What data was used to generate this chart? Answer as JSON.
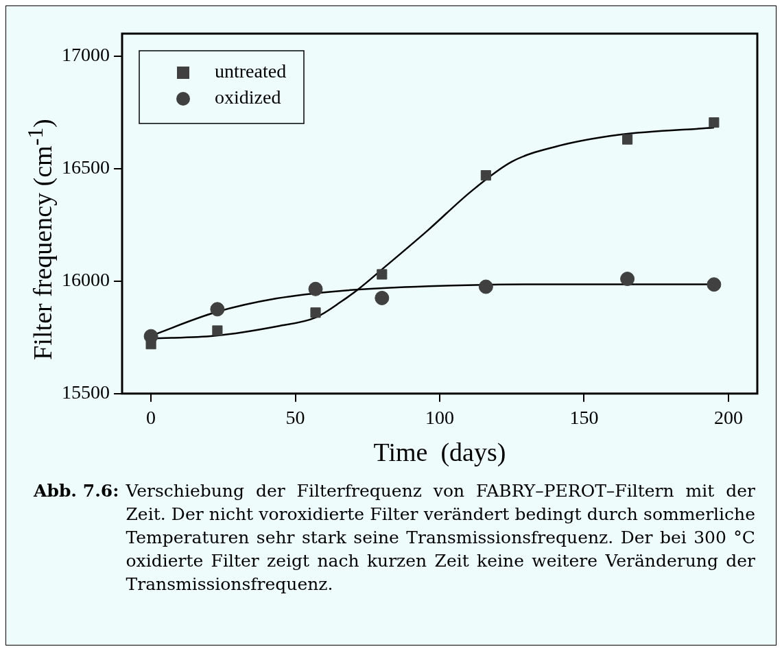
{
  "chart_data": {
    "type": "scatter",
    "xlabel": "Time  (days)",
    "ylabel": "Filter frequency (cm$^{-1}$)",
    "xlim": [
      -10,
      210
    ],
    "ylim": [
      15500,
      17100
    ],
    "xticks": [
      0,
      50,
      100,
      150,
      200
    ],
    "yticks": [
      15500,
      16000,
      16500,
      17000
    ],
    "legend": "top left",
    "series": [
      {
        "name": "untreated",
        "type": "scatter",
        "marker": "square",
        "color": "#404040",
        "x": [
          0,
          23,
          57,
          80,
          116,
          165,
          195
        ],
        "values": [
          15720,
          15780,
          15860,
          16030,
          16470,
          16630,
          16705
        ]
      },
      {
        "name": "oxidized",
        "type": "scatter",
        "marker": "circle",
        "color": "#404040",
        "x": [
          0,
          23,
          57,
          80,
          116,
          165,
          195
        ],
        "values": [
          15755,
          15875,
          15965,
          15925,
          15975,
          16010,
          15985
        ]
      },
      {
        "type": "line",
        "marker": "none",
        "line_style": "solid",
        "color": "#000000",
        "x": [
          0,
          22,
          44,
          57,
          66,
          72,
          81,
          96,
          111,
          125,
          140,
          162,
          195
        ],
        "values": [
          15745,
          15757,
          15800,
          15838,
          15910,
          15966,
          16063,
          16227,
          16400,
          16531,
          16597,
          16650,
          16682
        ]
      },
      {
        "type": "line",
        "marker": "none",
        "line_style": "solid",
        "color": "#000000",
        "x": [
          0,
          22.5,
          43.5,
          66,
          96,
          140,
          195
        ],
        "values": [
          15757,
          15862,
          15923,
          15957,
          15977,
          15986,
          15986
        ]
      }
    ],
    "annotations": [
      "Abb. 7.6:",
      "Verschiebung der Filterfrequenz von FABRY–PEROT–Filtern mit der Zeit. Der nicht voroxidierte Filter verändert bedingt durch sommerliche Temperaturen sehr stark seine Transmissionsfrequenz. Der bei 300 °C oxidierte Filter zeigt nach kurzen Zeit keine weitere Veränderung der Transmissionsfrequenz."
    ]
  }
}
